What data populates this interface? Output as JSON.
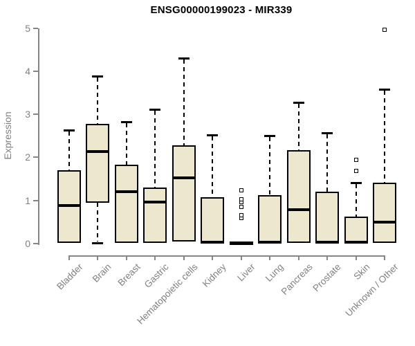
{
  "chart_data": {
    "type": "boxplot",
    "title": "ENSG00000199023 - MIR339",
    "ylabel": "Expression",
    "xlabel": "",
    "ylim": [
      0,
      5
    ],
    "yticks": [
      0,
      1,
      2,
      3,
      4,
      5
    ],
    "grid": false,
    "legend": false,
    "colors": {
      "box_fill": "#ece7cd",
      "box_border": "#000000",
      "median": "#000000",
      "axis": "#868686",
      "tick_label": "#808080",
      "title": "#000000",
      "background": "#ffffff"
    },
    "categories": [
      "Bladder",
      "Brain",
      "Breast",
      "Gastric",
      "Hematopoietic cells",
      "Kidney",
      "Liver",
      "Lung",
      "Pancreas",
      "Prostate",
      "Skin",
      "Unknown / Other"
    ],
    "series": [
      {
        "name": "Bladder",
        "whisker_low": 0,
        "q1": 0.02,
        "median": 0.88,
        "q3": 1.7,
        "whisker_high": 2.63,
        "outliers": []
      },
      {
        "name": "Brain",
        "whisker_low": 0.02,
        "q1": 0.95,
        "median": 2.14,
        "q3": 2.77,
        "whisker_high": 3.88,
        "outliers": []
      },
      {
        "name": "Breast",
        "whisker_low": 0,
        "q1": 0.02,
        "median": 1.2,
        "q3": 1.83,
        "whisker_high": 2.82,
        "outliers": []
      },
      {
        "name": "Gastric",
        "whisker_low": 0,
        "q1": 0.02,
        "median": 0.97,
        "q3": 1.3,
        "whisker_high": 3.12,
        "outliers": []
      },
      {
        "name": "Hematopoietic cells",
        "whisker_low": 0,
        "q1": 0.05,
        "median": 1.53,
        "q3": 2.28,
        "whisker_high": 4.3,
        "outliers": []
      },
      {
        "name": "Kidney",
        "whisker_low": 0,
        "q1": 0.01,
        "median": 0.03,
        "q3": 1.08,
        "whisker_high": 2.52,
        "outliers": []
      },
      {
        "name": "Liver",
        "whisker_low": 0,
        "q1": 0.01,
        "median": 0.02,
        "q3": 0.03,
        "whisker_high": 0.03,
        "outliers": [
          0.6,
          0.66,
          0.85,
          0.97,
          1.03,
          1.24
        ]
      },
      {
        "name": "Lung",
        "whisker_low": 0,
        "q1": 0.01,
        "median": 0.03,
        "q3": 1.13,
        "whisker_high": 2.51,
        "outliers": []
      },
      {
        "name": "Pancreas",
        "whisker_low": 0,
        "q1": 0.02,
        "median": 0.79,
        "q3": 2.17,
        "whisker_high": 3.28,
        "outliers": []
      },
      {
        "name": "Prostate",
        "whisker_low": 0,
        "q1": 0.01,
        "median": 0.03,
        "q3": 1.2,
        "whisker_high": 2.57,
        "outliers": []
      },
      {
        "name": "Skin",
        "whisker_low": 0,
        "q1": 0.01,
        "median": 0.03,
        "q3": 0.62,
        "whisker_high": 1.41,
        "outliers": [
          1.68,
          1.95
        ]
      },
      {
        "name": "Unknown / Other",
        "whisker_low": 0,
        "q1": 0.01,
        "median": 0.5,
        "q3": 1.42,
        "whisker_high": 3.58,
        "outliers": [
          4.96
        ]
      }
    ]
  }
}
